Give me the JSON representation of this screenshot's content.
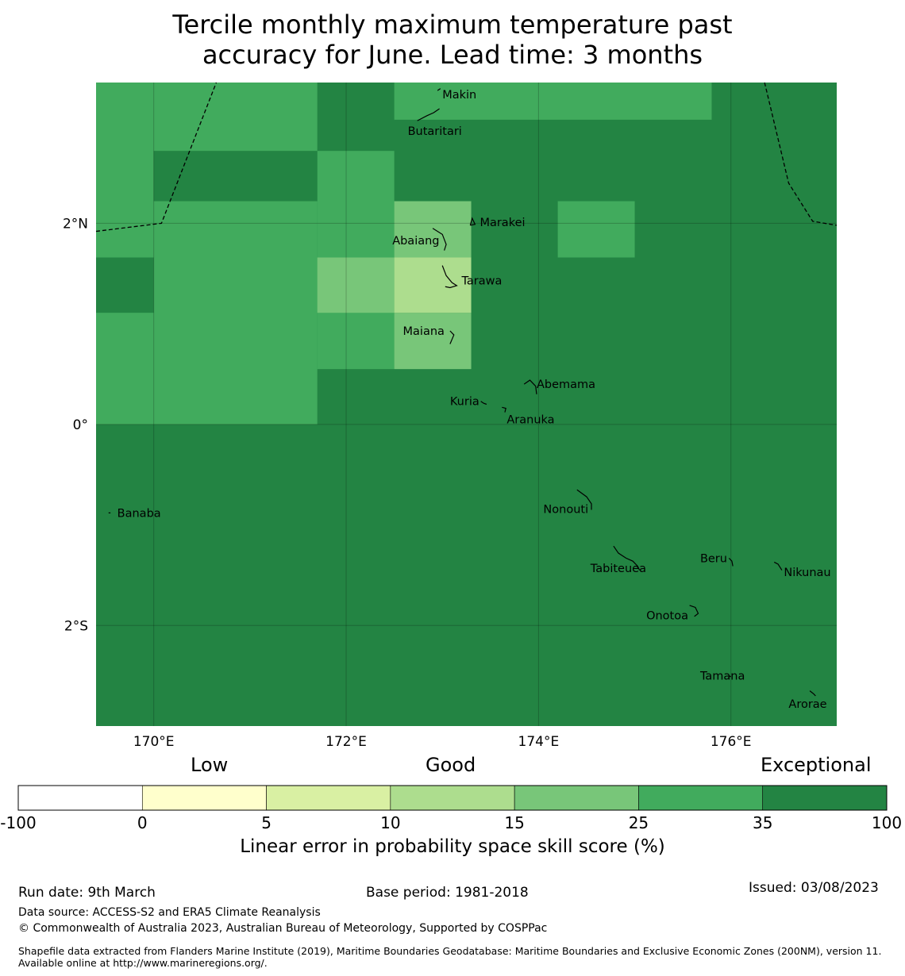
{
  "title": {
    "line1": "Tercile monthly maximum temperature past",
    "line2": "accuracy for June. Lead time: 3 months"
  },
  "map": {
    "lon_range": [
      169.4,
      177.1
    ],
    "lat_range": [
      -3.0,
      3.4
    ],
    "x_ticks": [
      {
        "value": 170,
        "label": "170°E"
      },
      {
        "value": 172,
        "label": "172°E"
      },
      {
        "value": 174,
        "label": "174°E"
      },
      {
        "value": 176,
        "label": "176°E"
      }
    ],
    "y_ticks": [
      {
        "value": 2,
        "label": "2°N"
      },
      {
        "value": 0,
        "label": "0°"
      },
      {
        "value": -2,
        "label": "2°S"
      }
    ],
    "skill_grid_note": "cells: [lon_min, lon_max, lat_min, lat_max, score_class]",
    "skill_cells": [
      [
        169.4,
        177.1,
        -3.0,
        3.4,
        "35-100"
      ],
      [
        169.4,
        171.7,
        0.0,
        3.4,
        "25-35"
      ],
      [
        172.5,
        175.8,
        3.03,
        3.4,
        "25-35"
      ],
      [
        171.7,
        172.5,
        0.55,
        2.72,
        "25-35"
      ],
      [
        174.2,
        175.0,
        1.66,
        2.22,
        "25-35"
      ],
      [
        170.0,
        171.7,
        2.22,
        2.72,
        "35-100"
      ],
      [
        169.4,
        170.0,
        1.11,
        1.66,
        "35-100"
      ],
      [
        171.7,
        172.5,
        1.11,
        1.66,
        "15-25"
      ],
      [
        172.5,
        173.3,
        1.66,
        2.22,
        "15-25"
      ],
      [
        172.5,
        173.3,
        0.55,
        1.11,
        "15-25"
      ],
      [
        172.5,
        173.3,
        1.11,
        1.66,
        "10-15"
      ]
    ],
    "islands": [
      {
        "name": "Makin",
        "lon": 172.98,
        "lat": 3.28
      },
      {
        "name": "Butaritari",
        "lon": 172.79,
        "lat": 3.02
      },
      {
        "name": "Marakei",
        "lon": 173.29,
        "lat": 2.01
      },
      {
        "name": "Abaiang",
        "lon": 172.9,
        "lat": 1.83
      },
      {
        "name": "Tarawa",
        "lon": 173.0,
        "lat": 1.43
      },
      {
        "name": "Maiana",
        "lon": 173.0,
        "lat": 0.93
      },
      {
        "name": "Abemama",
        "lon": 173.85,
        "lat": 0.4
      },
      {
        "name": "Kuria",
        "lon": 173.4,
        "lat": 0.23
      },
      {
        "name": "Aranuka",
        "lon": 173.62,
        "lat": 0.17
      },
      {
        "name": "Nonouti",
        "lon": 174.4,
        "lat": -0.65
      },
      {
        "name": "Banaba",
        "lon": 169.53,
        "lat": -0.88
      },
      {
        "name": "Tabiteuea",
        "lon": 174.83,
        "lat": -1.33
      },
      {
        "name": "Beru",
        "lon": 175.98,
        "lat": -1.33
      },
      {
        "name": "Nikunau",
        "lon": 176.45,
        "lat": -1.37
      },
      {
        "name": "Onotoa",
        "lon": 175.57,
        "lat": -1.8
      },
      {
        "name": "Tamana",
        "lon": 175.98,
        "lat": -2.5
      },
      {
        "name": "Arorae",
        "lon": 176.82,
        "lat": -2.65
      }
    ],
    "eez_boundary": {
      "west": [
        [
          169.4,
          1.92
        ],
        [
          170.08,
          2.0
        ],
        [
          170.65,
          3.4
        ]
      ],
      "east": [
        [
          176.35,
          3.4
        ],
        [
          176.6,
          2.4
        ],
        [
          176.85,
          2.02
        ],
        [
          177.1,
          1.98
        ]
      ]
    }
  },
  "legend": {
    "category_low": "Low",
    "category_good": "Good",
    "category_exceptional": "Exceptional",
    "bins": [
      {
        "from": "-100",
        "to": "0",
        "color": "#ffffff"
      },
      {
        "from": "0",
        "to": "5",
        "color": "#ffffcc"
      },
      {
        "from": "5",
        "to": "10",
        "color": "#d9f0a3"
      },
      {
        "from": "10",
        "to": "15",
        "color": "#addd8e"
      },
      {
        "from": "15",
        "to": "25",
        "color": "#78c679"
      },
      {
        "from": "25",
        "to": "35",
        "color": "#41ab5d"
      },
      {
        "from": "35",
        "to": "100",
        "color": "#238443"
      }
    ],
    "tick_labels": [
      "-100",
      "0",
      "5",
      "10",
      "15",
      "25",
      "35",
      "100"
    ],
    "axis_label": "Linear error in probability space skill score (%)"
  },
  "footer": {
    "run_date": "Run date: 9th March",
    "base_period": "Base period: 1981-2018",
    "issued": "Issued: 03/08/2023",
    "data_source": "Data source: ACCESS-S2 and ERA5 Climate Reanalysis",
    "copyright": "© Commonwealth of Australia 2023, Australian Bureau of Meteorology, Supported by COSPPac",
    "shapefile": "Shapefile data extracted from Flanders Marine Institute (2019), Maritime Boundaries Geodatabase: Maritime Boundaries and Exclusive Economic Zones (200NM), version 11. Available online at http://www.marineregions.org/."
  }
}
